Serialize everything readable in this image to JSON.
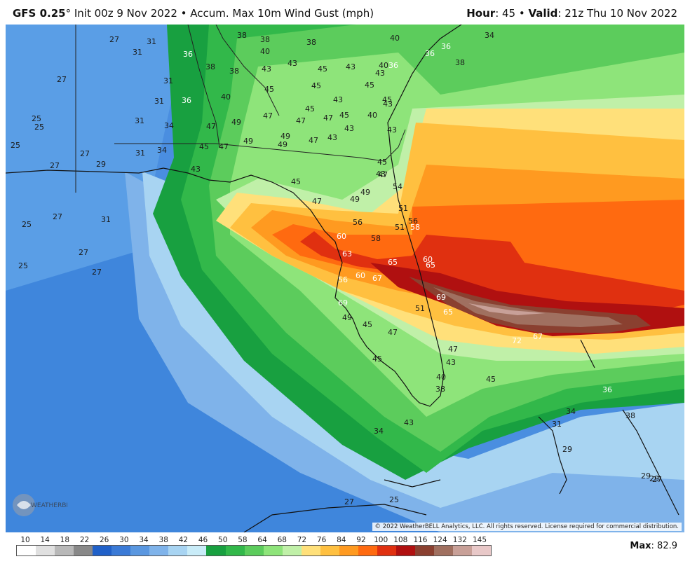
{
  "header": {
    "model": "GFS 0.25",
    "degree": "°",
    "init_text": " Init 00z 9 Nov 2022 • Accum. Max 10m Wind Gust (mph)",
    "hour_label": "Hour",
    "hour_value": ": 45 • ",
    "valid_label": "Valid",
    "valid_value": ": 21z Thu 10 Nov 2022"
  },
  "copyright": "© 2022 WeatherBELL Analytics, LLC. All rights reserved. License required for commercial distribution.",
  "logo_text": "WEATHERBELL",
  "legend": {
    "ticks": [
      "10",
      "14",
      "18",
      "22",
      "26",
      "30",
      "34",
      "38",
      "42",
      "46",
      "50",
      "58",
      "64",
      "68",
      "72",
      "76",
      "84",
      "92",
      "100",
      "108",
      "116",
      "124",
      "132",
      "145"
    ],
    "colors": [
      "#ffffff",
      "#e0e0e0",
      "#b8b8b8",
      "#888888",
      "#2060c8",
      "#3a7ad6",
      "#5a97e0",
      "#7fb3ea",
      "#a8d4f2",
      "#c9ecf8",
      "#18a040",
      "#32b84a",
      "#5ccc5c",
      "#8ee47a",
      "#c0f0a8",
      "#ffe07a",
      "#ffc040",
      "#ff9a20",
      "#ff6a10",
      "#e03010",
      "#b01010",
      "#8a4030",
      "#a07060",
      "#c8a098",
      "#e8c8c8"
    ],
    "max_label": "Max",
    "max_value": ": 82.9"
  },
  "map_labels": [
    {
      "t": "27",
      "c": "d"
    },
    {
      "t": "31",
      "c": "d"
    },
    {
      "t": "31",
      "c": "d"
    },
    {
      "t": "36",
      "c": "w"
    },
    {
      "t": "38",
      "c": "d"
    },
    {
      "t": "38",
      "c": "d"
    },
    {
      "t": "40",
      "c": "d"
    },
    {
      "t": "38",
      "c": "d"
    },
    {
      "t": "40",
      "c": "d"
    },
    {
      "t": "36",
      "c": "w"
    },
    {
      "t": "36",
      "c": "w"
    },
    {
      "t": "36",
      "c": "w"
    },
    {
      "t": "34",
      "c": "d"
    },
    {
      "t": "27",
      "c": "d"
    },
    {
      "t": "31",
      "c": "d"
    },
    {
      "t": "38",
      "c": "d"
    },
    {
      "t": "38",
      "c": "d"
    },
    {
      "t": "43",
      "c": "d"
    },
    {
      "t": "43",
      "c": "d"
    },
    {
      "t": "45",
      "c": "d"
    },
    {
      "t": "43",
      "c": "d"
    },
    {
      "t": "43",
      "c": "d"
    },
    {
      "t": "40",
      "c": "d"
    },
    {
      "t": "38",
      "c": "d"
    },
    {
      "t": "31",
      "c": "d"
    },
    {
      "t": "36",
      "c": "w"
    },
    {
      "t": "40",
      "c": "d"
    },
    {
      "t": "45",
      "c": "d"
    },
    {
      "t": "45",
      "c": "d"
    },
    {
      "t": "43",
      "c": "d"
    },
    {
      "t": "45",
      "c": "d"
    },
    {
      "t": "45",
      "c": "d"
    },
    {
      "t": "43",
      "c": "d"
    },
    {
      "t": "25",
      "c": "d"
    },
    {
      "t": "25",
      "c": "d"
    },
    {
      "t": "31",
      "c": "d"
    },
    {
      "t": "34",
      "c": "d"
    },
    {
      "t": "47",
      "c": "d"
    },
    {
      "t": "49",
      "c": "d"
    },
    {
      "t": "47",
      "c": "d"
    },
    {
      "t": "47",
      "c": "d"
    },
    {
      "t": "45",
      "c": "d"
    },
    {
      "t": "47",
      "c": "d"
    },
    {
      "t": "45",
      "c": "d"
    },
    {
      "t": "40",
      "c": "d"
    },
    {
      "t": "43",
      "c": "d"
    },
    {
      "t": "43",
      "c": "d"
    },
    {
      "t": "43",
      "c": "d"
    },
    {
      "t": "25",
      "c": "d"
    },
    {
      "t": "27",
      "c": "d"
    },
    {
      "t": "31",
      "c": "d"
    },
    {
      "t": "34",
      "c": "d"
    },
    {
      "t": "45",
      "c": "d"
    },
    {
      "t": "47",
      "c": "d"
    },
    {
      "t": "49",
      "c": "d"
    },
    {
      "t": "49",
      "c": "d"
    },
    {
      "t": "49",
      "c": "d"
    },
    {
      "t": "47",
      "c": "d"
    },
    {
      "t": "43",
      "c": "d"
    },
    {
      "t": "45",
      "c": "d"
    },
    {
      "t": "47",
      "c": "d"
    },
    {
      "t": "27",
      "c": "d"
    },
    {
      "t": "29",
      "c": "d"
    },
    {
      "t": "43",
      "c": "d"
    },
    {
      "t": "45",
      "c": "d"
    },
    {
      "t": "54",
      "c": "d"
    },
    {
      "t": "49",
      "c": "d"
    },
    {
      "t": "47",
      "c": "d"
    },
    {
      "t": "49",
      "c": "d"
    },
    {
      "t": "51",
      "c": "d"
    },
    {
      "t": "25",
      "c": "d"
    },
    {
      "t": "27",
      "c": "d"
    },
    {
      "t": "31",
      "c": "d"
    },
    {
      "t": "56",
      "c": "d"
    },
    {
      "t": "51",
      "c": "d"
    },
    {
      "t": "58",
      "c": "d"
    },
    {
      "t": "56",
      "c": "d"
    },
    {
      "t": "58",
      "c": "w"
    },
    {
      "t": "60",
      "c": "w"
    },
    {
      "t": "27",
      "c": "d"
    },
    {
      "t": "25",
      "c": "d"
    },
    {
      "t": "27",
      "c": "d"
    },
    {
      "t": "63",
      "c": "w"
    },
    {
      "t": "65",
      "c": "w"
    },
    {
      "t": "60",
      "c": "w"
    },
    {
      "t": "65",
      "c": "w"
    },
    {
      "t": "60",
      "c": "w"
    },
    {
      "t": "67",
      "c": "w"
    },
    {
      "t": "56",
      "c": "w"
    },
    {
      "t": "69",
      "c": "w"
    },
    {
      "t": "69",
      "c": "w"
    },
    {
      "t": "51",
      "c": "d"
    },
    {
      "t": "65",
      "c": "w"
    },
    {
      "t": "49",
      "c": "d"
    },
    {
      "t": "45",
      "c": "d"
    },
    {
      "t": "47",
      "c": "d"
    },
    {
      "t": "72",
      "c": "w"
    },
    {
      "t": "67",
      "c": "w"
    },
    {
      "t": "47",
      "c": "d"
    },
    {
      "t": "45",
      "c": "d"
    },
    {
      "t": "43",
      "c": "d"
    },
    {
      "t": "40",
      "c": "d"
    },
    {
      "t": "45",
      "c": "d"
    },
    {
      "t": "38",
      "c": "d"
    },
    {
      "t": "36",
      "c": "w"
    },
    {
      "t": "43",
      "c": "d"
    },
    {
      "t": "34",
      "c": "d"
    },
    {
      "t": "34",
      "c": "d"
    },
    {
      "t": "38",
      "c": "d"
    },
    {
      "t": "31",
      "c": "d"
    },
    {
      "t": "29",
      "c": "d"
    },
    {
      "t": "29",
      "c": "d"
    },
    {
      "t": "29",
      "c": "d"
    },
    {
      "t": "27",
      "c": "d"
    },
    {
      "t": "27",
      "c": "d"
    },
    {
      "t": "25",
      "c": "d"
    }
  ]
}
